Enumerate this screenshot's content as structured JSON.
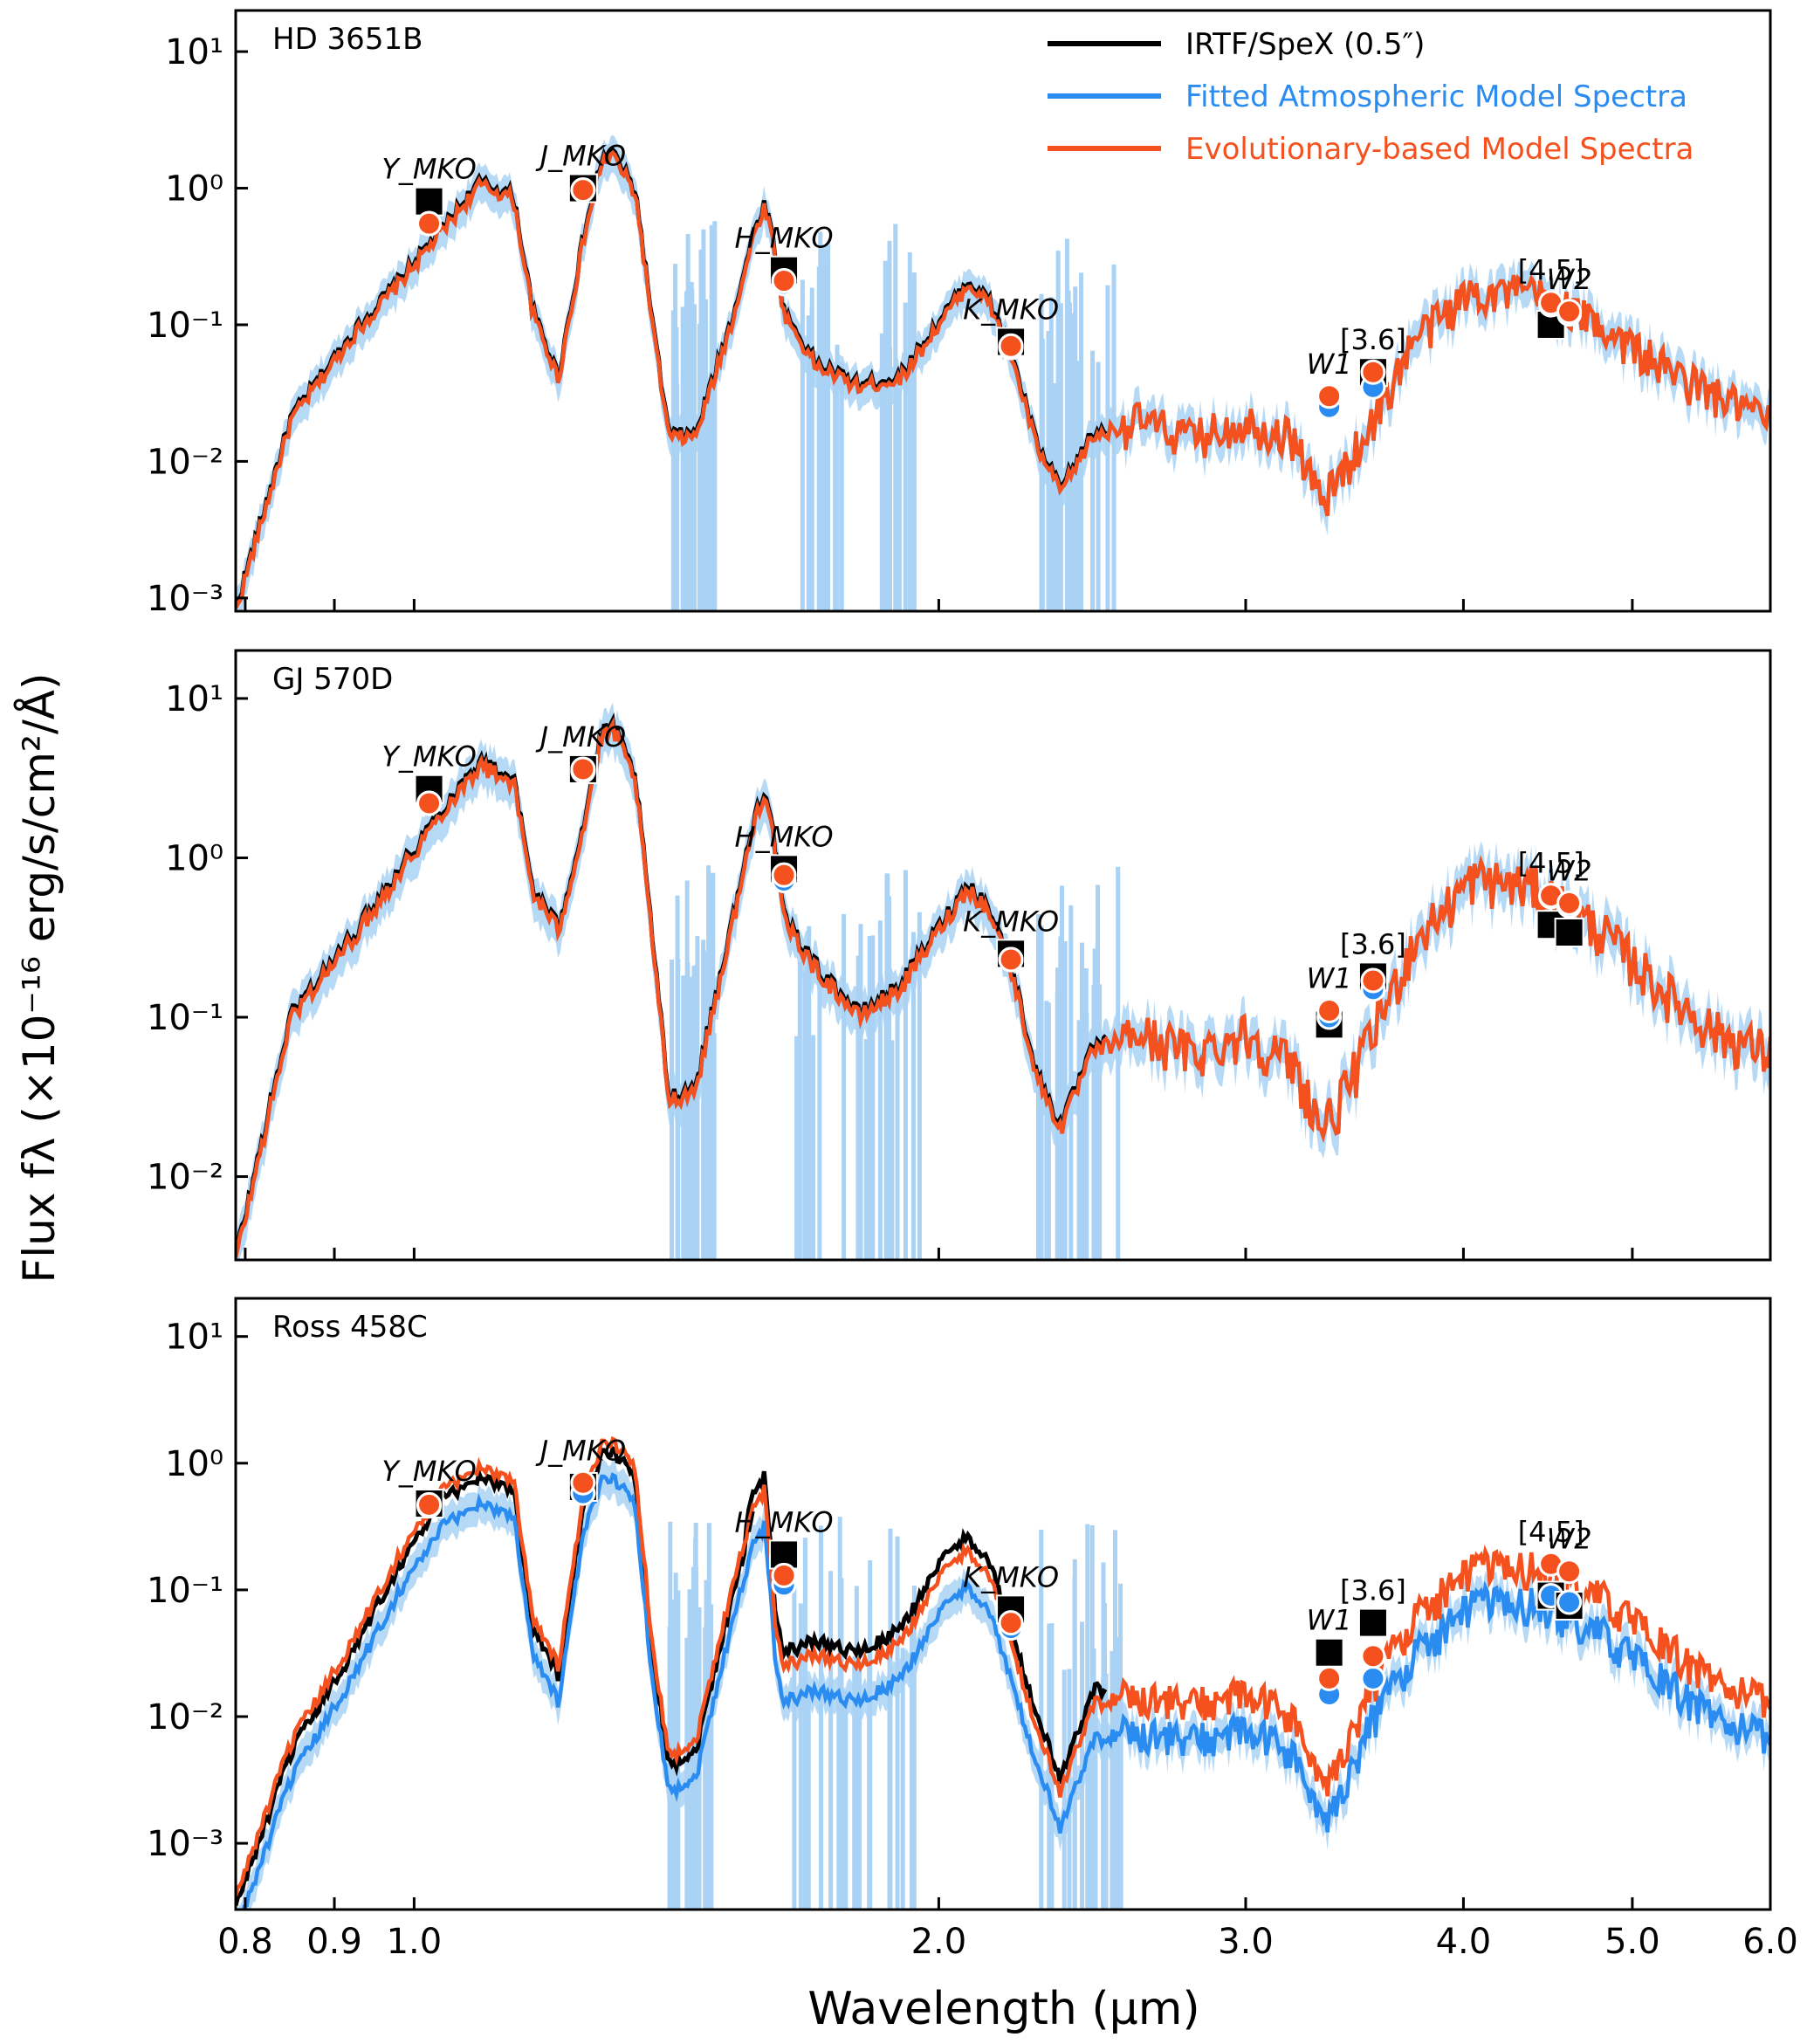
{
  "figure": {
    "ylabel": "Flux fλ (×10⁻¹⁶ erg/s/cm²/Å)",
    "xlabel": "Wavelength (μm)"
  },
  "legend": {
    "position": "top-right of top panel",
    "entries": [
      {
        "label": "IRTF/SpeX (0.5″)",
        "color": "#000000"
      },
      {
        "label": "Fitted Atmospheric Model Spectra",
        "color": "#2a8cf0"
      },
      {
        "label": "Evolutionary-based Model Spectra",
        "color": "#f4511e"
      }
    ]
  },
  "colors": {
    "data": "#000000",
    "atmo": "#2a8cf0",
    "evo": "#f4511e",
    "band": "#a9d2f5"
  },
  "chart_data": [
    {
      "type": "line",
      "title": "HD 3651B",
      "xscale": "log",
      "yscale": "log",
      "xlim": [
        0.79,
        6.0
      ],
      "ylim": [
        0.0008,
        20
      ],
      "xticks": [
        "0.8",
        "0.9",
        "1.0",
        "2.0",
        "3.0",
        "4.0",
        "5.0",
        "6.0"
      ],
      "yticks": [
        "10⁻³",
        "10⁻²",
        "10⁻¹",
        "10⁰",
        "10¹"
      ],
      "series_shape": [
        [
          0.79,
          0.0008
        ],
        [
          0.85,
          0.02
        ],
        [
          0.92,
          0.08
        ],
        [
          0.98,
          0.2
        ],
        [
          1.04,
          0.5
        ],
        [
          1.09,
          1.05
        ],
        [
          1.14,
          0.85
        ],
        [
          1.17,
          0.12
        ],
        [
          1.21,
          0.04
        ],
        [
          1.25,
          0.4
        ],
        [
          1.28,
          1.5
        ],
        [
          1.3,
          1.75
        ],
        [
          1.34,
          0.9
        ],
        [
          1.37,
          0.1
        ],
        [
          1.4,
          0.015
        ],
        [
          1.45,
          0.015
        ],
        [
          1.52,
          0.1
        ],
        [
          1.57,
          0.5
        ],
        [
          1.59,
          0.75
        ],
        [
          1.61,
          0.35
        ],
        [
          1.63,
          0.12
        ],
        [
          1.7,
          0.05
        ],
        [
          1.8,
          0.035
        ],
        [
          1.9,
          0.04
        ],
        [
          2.0,
          0.1
        ],
        [
          2.08,
          0.2
        ],
        [
          2.14,
          0.14
        ],
        [
          2.2,
          0.06
        ],
        [
          2.28,
          0.012
        ],
        [
          2.35,
          0.006
        ],
        [
          2.45,
          0.015
        ],
        [
          2.6,
          0.02
        ],
        [
          2.8,
          0.015
        ],
        [
          3.0,
          0.02
        ],
        [
          3.2,
          0.015
        ],
        [
          3.32,
          0.005
        ],
        [
          3.4,
          0.008
        ],
        [
          3.55,
          0.02
        ],
        [
          3.75,
          0.08
        ],
        [
          4.05,
          0.18
        ],
        [
          4.4,
          0.17
        ],
        [
          4.8,
          0.1
        ],
        [
          5.2,
          0.05
        ],
        [
          5.6,
          0.03
        ],
        [
          6.0,
          0.02
        ]
      ],
      "atmo_scale": 1.0,
      "evo_scale": 1.0,
      "photometry": [
        {
          "band": "Y_MKO",
          "x": 1.02,
          "observed": 0.8,
          "atmo": 0.55,
          "evo": 0.55
        },
        {
          "band": "J_MKO",
          "x": 1.25,
          "observed": 1.0,
          "atmo": 0.97,
          "evo": 0.97
        },
        {
          "band": "H_MKO",
          "x": 1.63,
          "observed": 0.25,
          "atmo": 0.2,
          "evo": 0.21
        },
        {
          "band": "K_MKO",
          "x": 2.2,
          "observed": 0.075,
          "atmo": 0.068,
          "evo": 0.07
        },
        {
          "band": "W1",
          "x": 3.35,
          "observed": null,
          "atmo": 0.025,
          "evo": 0.03
        },
        {
          "band": "[3.6]",
          "x": 3.55,
          "observed": 0.045,
          "atmo": 0.035,
          "evo": 0.045
        },
        {
          "band": "[4.5]",
          "x": 4.49,
          "observed": 0.1,
          "atmo": 0.14,
          "evo": 0.145
        },
        {
          "band": "W2",
          "x": 4.6,
          "observed": null,
          "atmo": 0.12,
          "evo": 0.125
        }
      ]
    },
    {
      "type": "line",
      "title": "GJ 570D",
      "xscale": "log",
      "yscale": "log",
      "xlim": [
        0.79,
        6.0
      ],
      "ylim": [
        0.003,
        20
      ],
      "xticks": [
        "0.8",
        "0.9",
        "1.0",
        "2.0",
        "3.0",
        "4.0",
        "5.0",
        "6.0"
      ],
      "yticks": [
        "10⁻²",
        "10⁻¹",
        "10⁰",
        "10¹"
      ],
      "series_shape": [
        [
          0.79,
          0.003
        ],
        [
          0.85,
          0.1
        ],
        [
          0.92,
          0.3
        ],
        [
          0.98,
          0.8
        ],
        [
          1.04,
          2.0
        ],
        [
          1.09,
          3.8
        ],
        [
          1.14,
          3.0
        ],
        [
          1.17,
          0.6
        ],
        [
          1.21,
          0.35
        ],
        [
          1.25,
          1.5
        ],
        [
          1.28,
          5.5
        ],
        [
          1.3,
          6.5
        ],
        [
          1.34,
          3.0
        ],
        [
          1.37,
          0.3
        ],
        [
          1.4,
          0.03
        ],
        [
          1.45,
          0.035
        ],
        [
          1.52,
          0.35
        ],
        [
          1.57,
          1.8
        ],
        [
          1.59,
          2.7
        ],
        [
          1.61,
          1.2
        ],
        [
          1.63,
          0.4
        ],
        [
          1.7,
          0.2
        ],
        [
          1.8,
          0.1
        ],
        [
          1.9,
          0.15
        ],
        [
          2.0,
          0.35
        ],
        [
          2.08,
          0.65
        ],
        [
          2.14,
          0.45
        ],
        [
          2.2,
          0.2
        ],
        [
          2.28,
          0.04
        ],
        [
          2.35,
          0.02
        ],
        [
          2.45,
          0.06
        ],
        [
          2.6,
          0.08
        ],
        [
          2.8,
          0.06
        ],
        [
          3.0,
          0.08
        ],
        [
          3.2,
          0.05
        ],
        [
          3.32,
          0.02
        ],
        [
          3.4,
          0.03
        ],
        [
          3.55,
          0.08
        ],
        [
          3.75,
          0.3
        ],
        [
          4.05,
          0.75
        ],
        [
          4.4,
          0.65
        ],
        [
          4.8,
          0.35
        ],
        [
          5.2,
          0.15
        ],
        [
          5.6,
          0.08
        ],
        [
          6.0,
          0.06
        ]
      ],
      "atmo_scale": 1.0,
      "evo_scale": 1.0,
      "photometry": [
        {
          "band": "Y_MKO",
          "x": 1.02,
          "observed": 2.7,
          "atmo": 2.2,
          "evo": 2.2
        },
        {
          "band": "J_MKO",
          "x": 1.25,
          "observed": 3.6,
          "atmo": 3.5,
          "evo": 3.6
        },
        {
          "band": "H_MKO",
          "x": 1.63,
          "observed": 0.85,
          "atmo": 0.72,
          "evo": 0.78
        },
        {
          "band": "K_MKO",
          "x": 2.2,
          "observed": 0.25,
          "atmo": 0.23,
          "evo": 0.23
        },
        {
          "band": "W1",
          "x": 3.35,
          "observed": 0.09,
          "atmo": 0.1,
          "evo": 0.11
        },
        {
          "band": "[3.6]",
          "x": 3.55,
          "observed": 0.18,
          "atmo": 0.15,
          "evo": 0.17
        },
        {
          "band": "[4.5]",
          "x": 4.49,
          "observed": 0.38,
          "atmo": 0.57,
          "evo": 0.58
        },
        {
          "band": "W2",
          "x": 4.6,
          "observed": 0.34,
          "atmo": 0.5,
          "evo": 0.52
        }
      ]
    },
    {
      "type": "line",
      "title": "Ross 458C",
      "xscale": "log",
      "yscale": "log",
      "xlim": [
        0.79,
        6.0
      ],
      "ylim": [
        0.0003,
        20
      ],
      "xticks": [
        "0.8",
        "0.9",
        "1.0",
        "2.0",
        "3.0",
        "4.0",
        "5.0",
        "6.0"
      ],
      "yticks": [
        "10⁻³",
        "10⁻²",
        "10⁻¹",
        "10⁰",
        "10¹"
      ],
      "series_shape": [
        [
          0.79,
          0.0003
        ],
        [
          0.85,
          0.005
        ],
        [
          0.92,
          0.03
        ],
        [
          0.98,
          0.15
        ],
        [
          1.04,
          0.5
        ],
        [
          1.09,
          0.75
        ],
        [
          1.14,
          0.6
        ],
        [
          1.17,
          0.05
        ],
        [
          1.21,
          0.02
        ],
        [
          1.25,
          0.4
        ],
        [
          1.28,
          1.1
        ],
        [
          1.3,
          1.25
        ],
        [
          1.34,
          0.7
        ],
        [
          1.37,
          0.03
        ],
        [
          1.4,
          0.004
        ],
        [
          1.45,
          0.005
        ],
        [
          1.52,
          0.08
        ],
        [
          1.57,
          0.4
        ],
        [
          1.59,
          0.5
        ],
        [
          1.61,
          0.05
        ],
        [
          1.63,
          0.02
        ],
        [
          1.7,
          0.025
        ],
        [
          1.8,
          0.02
        ],
        [
          1.9,
          0.03
        ],
        [
          2.0,
          0.1
        ],
        [
          2.08,
          0.17
        ],
        [
          2.14,
          0.1
        ],
        [
          2.2,
          0.03
        ],
        [
          2.28,
          0.006
        ],
        [
          2.35,
          0.002
        ],
        [
          2.45,
          0.01
        ],
        [
          2.6,
          0.012
        ],
        [
          2.8,
          0.01
        ],
        [
          3.0,
          0.012
        ],
        [
          3.2,
          0.008
        ],
        [
          3.32,
          0.002
        ],
        [
          3.4,
          0.004
        ],
        [
          3.55,
          0.015
        ],
        [
          3.75,
          0.05
        ],
        [
          4.05,
          0.12
        ],
        [
          4.4,
          0.12
        ],
        [
          4.8,
          0.07
        ],
        [
          5.2,
          0.03
        ],
        [
          5.6,
          0.015
        ],
        [
          6.0,
          0.01
        ]
      ],
      "atmo_scale": 0.65,
      "evo_scale": 1.25,
      "photometry": [
        {
          "band": "Y_MKO",
          "x": 1.02,
          "observed": 0.48,
          "atmo": 0.46,
          "evo": 0.47
        },
        {
          "band": "J_MKO",
          "x": 1.25,
          "observed": 0.65,
          "atmo": 0.58,
          "evo": 0.7
        },
        {
          "band": "H_MKO",
          "x": 1.63,
          "observed": 0.19,
          "atmo": 0.11,
          "evo": 0.13
        },
        {
          "band": "K_MKO",
          "x": 2.2,
          "observed": 0.07,
          "atmo": 0.05,
          "evo": 0.055
        },
        {
          "band": "W1",
          "x": 3.35,
          "observed": 0.032,
          "atmo": 0.015,
          "evo": 0.02
        },
        {
          "band": "[3.6]",
          "x": 3.55,
          "observed": 0.055,
          "atmo": 0.02,
          "evo": 0.03
        },
        {
          "band": "[4.5]",
          "x": 4.49,
          "observed": 0.09,
          "atmo": 0.09,
          "evo": 0.16
        },
        {
          "band": "W2",
          "x": 4.6,
          "observed": 0.075,
          "atmo": 0.08,
          "evo": 0.14
        }
      ]
    }
  ]
}
